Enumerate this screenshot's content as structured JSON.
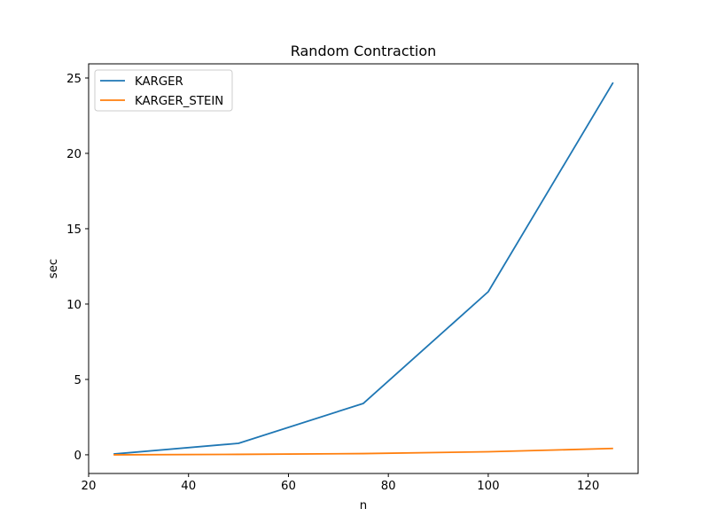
{
  "chart_data": {
    "type": "line",
    "title": "Random Contraction",
    "xlabel": "n",
    "ylabel": "sec",
    "x": [
      25,
      50,
      75,
      100,
      125
    ],
    "series": [
      {
        "name": "KARGER",
        "color": "#1f77b4",
        "values": [
          0.05,
          0.76,
          3.41,
          10.82,
          24.7
        ]
      },
      {
        "name": "KARGER_STEIN",
        "color": "#ff7f0e",
        "values": [
          0.0,
          0.03,
          0.08,
          0.2,
          0.42
        ]
      }
    ],
    "xlim": [
      20,
      130
    ],
    "ylim": [
      -1.24,
      25.94
    ],
    "xticks": [
      20,
      40,
      60,
      80,
      100,
      120
    ],
    "yticks": [
      0,
      5,
      10,
      15,
      20,
      25
    ],
    "grid": false,
    "legend_position": "upper left"
  }
}
